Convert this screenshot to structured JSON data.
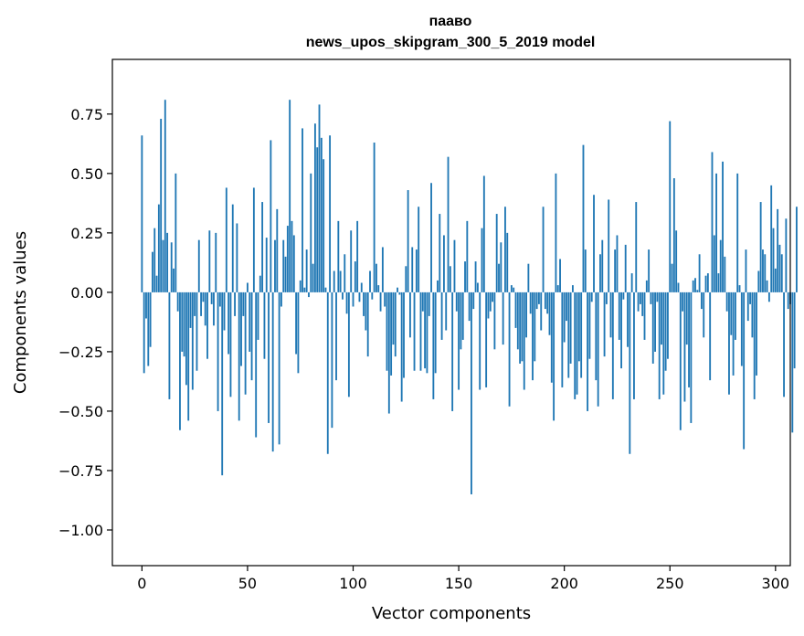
{
  "chart_data": {
    "type": "bar",
    "title": "пааво",
    "subtitle": "news_upos_skipgram_300_5_2019 model",
    "xlabel": "Vector components",
    "ylabel": "Components values",
    "xlim": [
      -14,
      307
    ],
    "ylim": [
      -1.15,
      0.98
    ],
    "xticks": [
      0,
      50,
      100,
      150,
      200,
      250,
      300
    ],
    "xtick_labels": [
      "0",
      "50",
      "100",
      "150",
      "200",
      "250",
      "300"
    ],
    "yticks": [
      -1.0,
      -0.75,
      -0.5,
      -0.25,
      0.0,
      0.25,
      0.5,
      0.75
    ],
    "ytick_labels": [
      "−1.00",
      "−0.75",
      "−0.50",
      "−0.25",
      "0.00",
      "0.25",
      "0.50",
      "0.75"
    ],
    "bar_color": "#1f77b4",
    "values": [
      0.66,
      -0.34,
      -0.11,
      -0.31,
      -0.23,
      0.17,
      0.27,
      0.07,
      0.37,
      0.73,
      0.22,
      0.81,
      0.25,
      -0.45,
      0.21,
      0.1,
      0.5,
      -0.08,
      -0.58,
      -0.25,
      -0.27,
      -0.39,
      -0.54,
      -0.15,
      -0.41,
      -0.1,
      -0.33,
      0.22,
      -0.1,
      -0.04,
      -0.14,
      -0.28,
      0.26,
      -0.05,
      -0.14,
      0.25,
      -0.5,
      -0.06,
      -0.77,
      -0.16,
      0.44,
      -0.26,
      -0.44,
      0.37,
      -0.1,
      0.29,
      -0.54,
      -0.31,
      -0.1,
      -0.43,
      0.04,
      -0.25,
      -0.37,
      0.44,
      -0.61,
      -0.2,
      0.07,
      0.38,
      -0.28,
      0.23,
      -0.55,
      0.64,
      -0.67,
      0.22,
      0.35,
      -0.64,
      -0.06,
      0.22,
      0.15,
      0.28,
      0.81,
      0.3,
      0.24,
      -0.26,
      -0.34,
      0.05,
      0.69,
      0.02,
      0.18,
      -0.02,
      0.5,
      0.12,
      0.71,
      0.61,
      0.79,
      0.65,
      0.56,
      0.02,
      -0.68,
      0.66,
      -0.57,
      0.09,
      -0.37,
      0.3,
      0.09,
      -0.03,
      0.16,
      -0.09,
      -0.44,
      0.26,
      -0.06,
      0.13,
      0.3,
      -0.04,
      0.04,
      -0.1,
      -0.16,
      -0.27,
      0.09,
      -0.03,
      0.63,
      0.12,
      0.03,
      -0.08,
      0.19,
      -0.06,
      -0.33,
      -0.51,
      -0.35,
      -0.22,
      -0.27,
      0.02,
      -0.01,
      -0.46,
      -0.36,
      0.11,
      0.43,
      -0.19,
      0.19,
      -0.33,
      0.18,
      0.36,
      -0.33,
      -0.08,
      -0.32,
      -0.34,
      -0.1,
      0.46,
      -0.45,
      -0.34,
      0.05,
      0.33,
      -0.2,
      0.24,
      -0.16,
      0.57,
      0.11,
      -0.5,
      0.22,
      -0.08,
      -0.41,
      -0.24,
      -0.2,
      0.13,
      0.3,
      -0.12,
      -0.85,
      -0.07,
      0.13,
      0.04,
      -0.41,
      0.27,
      0.49,
      -0.4,
      -0.11,
      -0.08,
      -0.04,
      -0.24,
      0.33,
      0.12,
      0.21,
      -0.22,
      0.36,
      0.25,
      -0.48,
      0.03,
      0.02,
      -0.15,
      -0.24,
      -0.3,
      -0.29,
      -0.41,
      -0.19,
      0.12,
      -0.09,
      -0.37,
      -0.29,
      -0.07,
      -0.05,
      -0.16,
      0.36,
      -0.07,
      -0.09,
      -0.18,
      -0.38,
      -0.54,
      0.5,
      0.03,
      0.14,
      -0.4,
      -0.21,
      -0.12,
      -0.36,
      -0.3,
      0.03,
      -0.45,
      -0.43,
      -0.29,
      -0.36,
      0.62,
      0.18,
      -0.5,
      -0.28,
      -0.04,
      0.41,
      -0.37,
      -0.48,
      0.16,
      0.22,
      -0.27,
      -0.05,
      0.39,
      -0.19,
      -0.45,
      0.18,
      0.24,
      -0.2,
      -0.32,
      -0.03,
      0.2,
      -0.23,
      -0.68,
      0.08,
      -0.45,
      0.38,
      -0.08,
      -0.05,
      -0.1,
      -0.2,
      0.05,
      0.18,
      -0.05,
      -0.3,
      -0.25,
      -0.04,
      -0.45,
      -0.22,
      -0.43,
      -0.33,
      -0.28,
      0.72,
      0.12,
      0.48,
      0.26,
      0.04,
      -0.58,
      -0.08,
      -0.46,
      -0.22,
      -0.4,
      -0.55,
      0.05,
      0.06,
      0.01,
      0.16,
      -0.07,
      -0.19,
      0.07,
      0.08,
      -0.37,
      0.59,
      0.24,
      0.5,
      0.08,
      0.22,
      0.55,
      0.15,
      -0.08,
      -0.43,
      -0.18,
      -0.35,
      -0.2,
      0.5,
      0.03,
      -0.31,
      -0.66,
      0.18,
      -0.12,
      -0.05,
      -0.19,
      -0.45,
      -0.35,
      0.09,
      0.38,
      0.18,
      0.16,
      0.05,
      -0.04,
      0.45,
      0.27,
      0.1,
      0.35,
      0.2,
      0.16,
      -0.44,
      0.31,
      -0.07,
      -0.05,
      -0.59,
      -0.32,
      0.36
    ]
  }
}
